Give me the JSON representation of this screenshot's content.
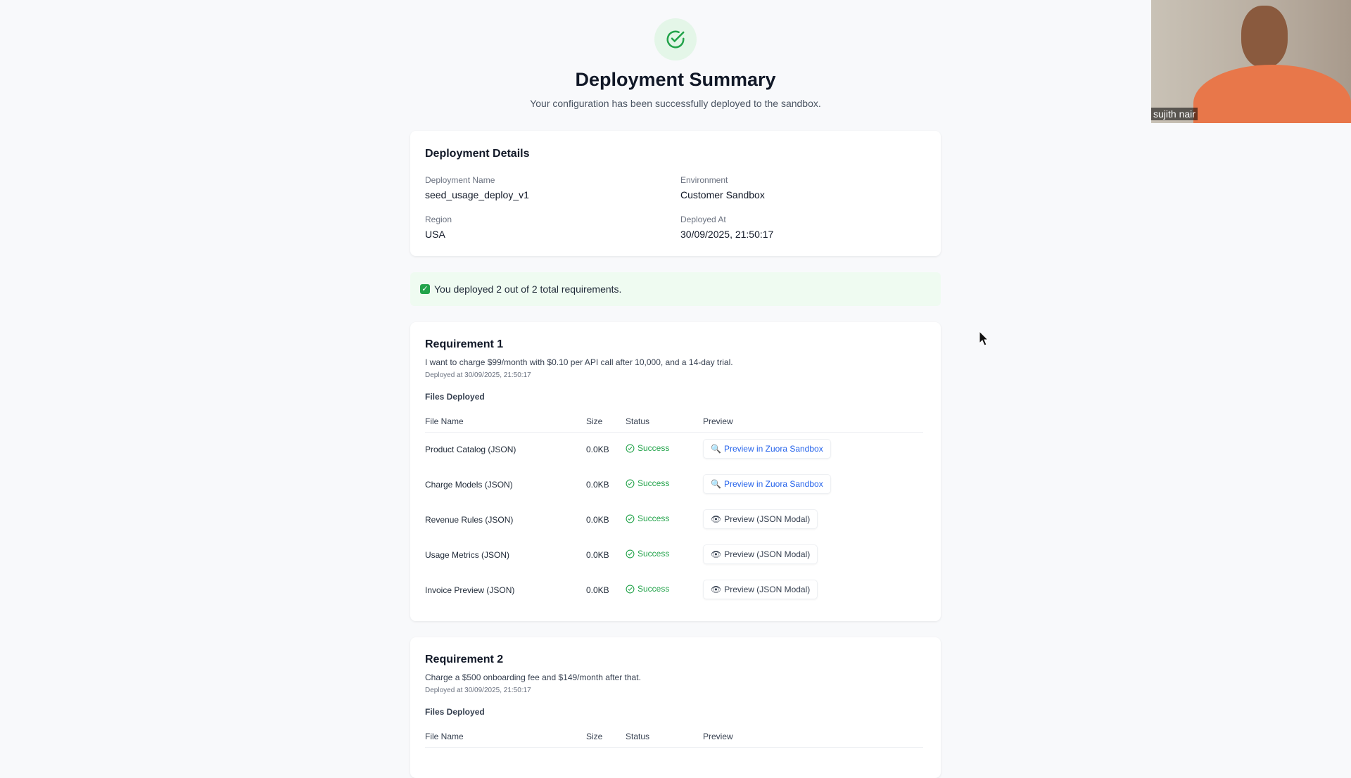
{
  "header": {
    "title": "Deployment Summary",
    "subtitle": "Your configuration has been successfully deployed to the sandbox.",
    "icon": "check-circle-icon"
  },
  "details": {
    "title": "Deployment Details",
    "fields": [
      {
        "label": "Deployment Name",
        "value": "seed_usage_deploy_v1"
      },
      {
        "label": "Environment",
        "value": "Customer Sandbox"
      },
      {
        "label": "Region",
        "value": "USA"
      },
      {
        "label": "Deployed At",
        "value": "30/09/2025, 21:50:17"
      }
    ]
  },
  "banner": {
    "text": "You deployed 2 out of 2 total requirements.",
    "icon": "check-box-icon"
  },
  "columns": {
    "name": "File Name",
    "size": "Size",
    "status": "Status",
    "preview": "Preview"
  },
  "requirements": [
    {
      "title": "Requirement 1",
      "description": "I want to charge $99/month with $0.10 per API call after 10,000, and a 14-day trial.",
      "deployed": "Deployed at 30/09/2025, 21:50:17",
      "files_label": "Files Deployed",
      "files": [
        {
          "name": "Product Catalog (JSON)",
          "size": "0.0KB",
          "status": "Success",
          "preview": "Preview in Zuora Sandbox",
          "preview_type": "link"
        },
        {
          "name": "Charge Models (JSON)",
          "size": "0.0KB",
          "status": "Success",
          "preview": "Preview in Zuora Sandbox",
          "preview_type": "link"
        },
        {
          "name": "Revenue Rules (JSON)",
          "size": "0.0KB",
          "status": "Success",
          "preview": "Preview (JSON Modal)",
          "preview_type": "modal"
        },
        {
          "name": "Usage Metrics (JSON)",
          "size": "0.0KB",
          "status": "Success",
          "preview": "Preview (JSON Modal)",
          "preview_type": "modal"
        },
        {
          "name": "Invoice Preview (JSON)",
          "size": "0.0KB",
          "status": "Success",
          "preview": "Preview (JSON Modal)",
          "preview_type": "modal"
        }
      ]
    },
    {
      "title": "Requirement 2",
      "description": "Charge a $500 onboarding fee and $149/month after that.",
      "deployed": "Deployed at 30/09/2025, 21:50:17",
      "files_label": "Files Deployed",
      "files": []
    }
  ],
  "webcam": {
    "name": "sujith nair"
  },
  "colors": {
    "success": "#22a34a",
    "link": "#2563eb",
    "banner_bg": "#effbf1"
  }
}
